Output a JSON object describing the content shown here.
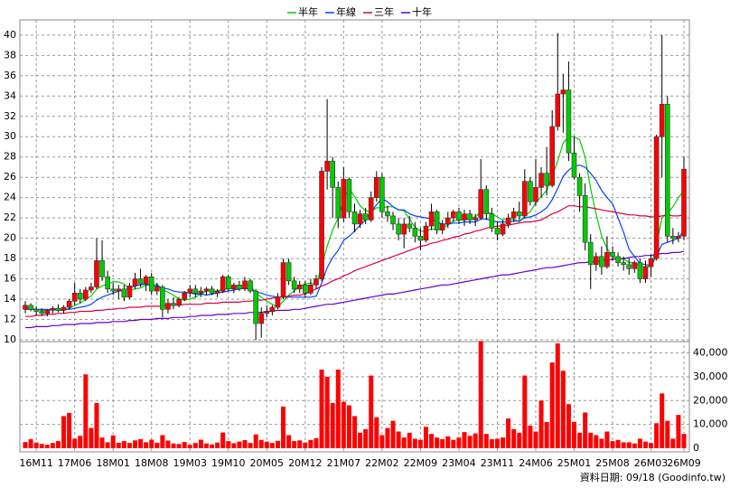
{
  "chart_data": {
    "type": "candlestick",
    "footer": "資料日期: 09/18 (Goodinfo.tw)",
    "grid": true,
    "legend": "top",
    "up_color": "#ff0000",
    "down_color": "#00cc00",
    "categories": [
      null,
      null,
      "16M11",
      null,
      null,
      null,
      null,
      null,
      null,
      "17M06",
      null,
      null,
      null,
      null,
      null,
      null,
      "18M01",
      null,
      null,
      null,
      null,
      null,
      null,
      "18M08",
      null,
      null,
      null,
      null,
      null,
      null,
      "19M03",
      null,
      null,
      null,
      null,
      null,
      null,
      "19M10",
      null,
      null,
      null,
      null,
      null,
      null,
      "20M05",
      null,
      null,
      null,
      null,
      null,
      null,
      "20M12",
      null,
      null,
      null,
      null,
      null,
      null,
      "21M07",
      null,
      null,
      null,
      null,
      null,
      null,
      "22M02",
      null,
      null,
      null,
      null,
      null,
      null,
      "22M09",
      null,
      null,
      null,
      null,
      null,
      null,
      "23M04",
      null,
      null,
      null,
      null,
      null,
      null,
      "23M11",
      null,
      null,
      null,
      null,
      null,
      null,
      "24M06",
      null,
      null,
      null,
      null,
      null,
      null,
      "25M01",
      null,
      null,
      null,
      null,
      null,
      null,
      "25M08",
      null,
      null,
      null,
      null,
      null,
      null,
      "26M03",
      null,
      null,
      null,
      null,
      null,
      "26M09"
    ],
    "open": [
      13,
      13.4,
      13.0,
      12.8,
      12.6,
      12.9,
      13.1,
      12.9,
      13.2,
      13.8,
      14.6,
      14.0,
      14.9,
      15.2,
      17.8,
      16.2,
      15.0,
      14.8,
      15.0,
      14.2,
      15.3,
      16.0,
      15.5,
      16.2,
      14.8,
      15.2,
      13.0,
      13.6,
      13.4,
      14.0,
      14.6,
      15.0,
      14.6,
      14.8,
      15.0,
      14.6,
      14.8,
      16.2,
      15.0,
      15.4,
      15.0,
      15.8,
      14.8,
      11.6,
      12.6,
      12.8,
      13.2,
      14.2,
      17.6,
      15.8,
      15.0,
      15.4,
      14.6,
      15.4,
      16.0,
      26.6,
      27.6,
      25.0,
      22.0,
      25.8,
      22.6,
      21.4,
      22.4,
      21.8,
      24.0,
      26.0,
      22.6,
      22.2,
      21.4,
      20.4,
      21.4,
      21.0,
      20.2,
      19.8,
      21.2,
      22.6,
      20.8,
      21.4,
      22.0,
      22.6,
      21.8,
      22.4,
      21.8,
      22.0,
      24.8,
      22.4,
      21.0,
      20.4,
      21.4,
      22.0,
      22.6,
      22.2,
      25.6,
      23.6,
      25.0,
      26.4,
      25.2,
      31.0,
      34.2,
      34.6,
      28.4,
      26.0,
      24.2,
      19.6,
      17.4,
      18.2,
      17.2,
      18.6,
      18.2,
      17.6,
      17.4,
      17.0,
      17.6,
      16.0,
      17.2,
      18.0,
      30.0,
      33.2,
      20.2,
      20.0,
      20.2
    ],
    "high": [
      13.8,
      13.6,
      13.3,
      13.1,
      13.0,
      13.3,
      13.5,
      13.4,
      14.0,
      15.6,
      15.0,
      15.2,
      15.6,
      20.0,
      19.8,
      16.8,
      15.6,
      15.4,
      15.4,
      15.6,
      16.6,
      17.0,
      16.4,
      16.6,
      15.6,
      15.4,
      14.0,
      14.2,
      14.2,
      14.8,
      15.4,
      15.4,
      15.2,
      15.2,
      15.3,
      15.0,
      16.4,
      16.4,
      15.6,
      15.8,
      16.2,
      16.0,
      15.0,
      13.2,
      13.4,
      13.4,
      14.6,
      18.0,
      18.0,
      16.2,
      15.8,
      15.8,
      16.0,
      16.4,
      27.0,
      33.7,
      28.0,
      25.6,
      27.0,
      26.0,
      23.4,
      22.8,
      23.0,
      24.6,
      26.6,
      26.4,
      23.2,
      22.6,
      22.0,
      22.0,
      22.2,
      21.6,
      21.0,
      21.6,
      23.4,
      22.8,
      21.8,
      22.6,
      22.8,
      23.0,
      22.8,
      22.8,
      22.4,
      27.8,
      25.2,
      23.0,
      21.6,
      21.8,
      22.4,
      23.0,
      23.6,
      26.8,
      26.0,
      27.8,
      27.0,
      29.0,
      32.6,
      40.2,
      36.2,
      37.4,
      30.0,
      26.4,
      25.4,
      20.4,
      18.6,
      19.2,
      20.2,
      19.2,
      18.6,
      18.2,
      18.0,
      17.8,
      18.0,
      17.8,
      18.4,
      30.2,
      40.0,
      34.0,
      21.0,
      20.6,
      28.0
    ],
    "low": [
      12.6,
      12.8,
      12.4,
      12.4,
      12.3,
      12.6,
      12.7,
      12.6,
      13.0,
      13.4,
      13.6,
      13.8,
      14.6,
      15.0,
      15.8,
      14.6,
      14.4,
      14.0,
      13.8,
      14.0,
      15.0,
      15.2,
      14.8,
      14.4,
      14.4,
      12.2,
      12.6,
      13.0,
      13.2,
      13.8,
      14.2,
      14.2,
      14.2,
      14.4,
      14.4,
      14.2,
      14.6,
      14.8,
      14.6,
      14.8,
      14.8,
      14.6,
      10.0,
      10.2,
      12.2,
      12.4,
      13.0,
      14.0,
      15.4,
      14.6,
      14.6,
      14.2,
      14.4,
      15.0,
      15.8,
      24.8,
      22.0,
      21.0,
      21.6,
      22.0,
      20.6,
      21.0,
      21.4,
      21.6,
      23.6,
      22.0,
      21.6,
      20.8,
      19.8,
      19.0,
      20.6,
      19.6,
      18.8,
      19.6,
      20.8,
      20.4,
      20.4,
      21.0,
      21.6,
      21.4,
      21.2,
      21.4,
      21.2,
      21.8,
      21.8,
      20.6,
      19.8,
      20.2,
      21.0,
      21.6,
      21.8,
      22.0,
      23.2,
      23.2,
      24.0,
      24.2,
      25.0,
      30.6,
      30.4,
      27.6,
      25.8,
      22.6,
      18.8,
      15.0,
      16.8,
      16.4,
      17.0,
      17.8,
      17.2,
      16.8,
      16.4,
      16.6,
      15.6,
      15.6,
      16.2,
      17.8,
      26.0,
      19.6,
      19.4,
      19.6,
      19.8
    ],
    "close": [
      13.4,
      13.0,
      12.8,
      12.6,
      12.9,
      13.1,
      12.9,
      13.2,
      13.8,
      14.6,
      14.0,
      14.9,
      15.2,
      17.8,
      16.2,
      15.0,
      14.8,
      15.0,
      14.2,
      15.3,
      16.0,
      15.5,
      16.2,
      14.8,
      15.2,
      13.0,
      13.6,
      13.4,
      14.0,
      14.6,
      15.0,
      14.6,
      14.8,
      15.0,
      14.6,
      14.8,
      16.2,
      15.0,
      15.4,
      15.0,
      15.8,
      14.8,
      11.6,
      12.6,
      12.8,
      13.2,
      14.2,
      17.6,
      15.8,
      15.0,
      15.4,
      14.6,
      15.4,
      16.0,
      26.6,
      27.6,
      25.0,
      22.0,
      25.8,
      22.6,
      21.4,
      22.4,
      21.8,
      24.0,
      26.0,
      22.6,
      22.2,
      21.4,
      20.4,
      21.4,
      21.0,
      20.2,
      19.8,
      21.2,
      22.6,
      20.8,
      21.4,
      22.0,
      22.6,
      21.8,
      22.4,
      21.8,
      22.0,
      24.8,
      22.4,
      21.0,
      20.4,
      21.4,
      22.0,
      22.6,
      22.2,
      25.6,
      23.6,
      25.0,
      26.4,
      25.2,
      31.0,
      34.2,
      34.6,
      28.4,
      26.0,
      24.2,
      19.6,
      17.4,
      18.2,
      17.2,
      18.6,
      18.2,
      17.6,
      17.4,
      17.0,
      17.6,
      16.0,
      17.2,
      18.0,
      30.0,
      33.2,
      20.2,
      20.0,
      20.2,
      26.8
    ],
    "volume": {
      "color": "#ff0000",
      "values": [
        2600,
        3800,
        2400,
        1800,
        1500,
        2200,
        3000,
        13500,
        14800,
        4000,
        5200,
        31000,
        8500,
        19000,
        4500,
        2500,
        5400,
        2300,
        3000,
        2200,
        3300,
        3800,
        2500,
        3600,
        2300,
        5500,
        3200,
        2000,
        1800,
        2600,
        1400,
        2200,
        3600,
        2000,
        1600,
        2400,
        6600,
        3000,
        2100,
        2800,
        3400,
        2200,
        5800,
        3500,
        2800,
        2200,
        3100,
        17500,
        5500,
        3000,
        3300,
        2400,
        3500,
        4200,
        33000,
        30000,
        19000,
        33000,
        19500,
        18000,
        13500,
        6500,
        8000,
        30500,
        13000,
        5500,
        8500,
        11500,
        7000,
        4500,
        6500,
        4000,
        3500,
        9000,
        6000,
        4500,
        3800,
        5000,
        3500,
        4500,
        6800,
        5200,
        6200,
        45000,
        6000,
        3800,
        4000,
        4500,
        12500,
        8000,
        6500,
        30500,
        9500,
        7000,
        20000,
        11000,
        36000,
        44000,
        32500,
        18500,
        11000,
        6500,
        15000,
        6500,
        5500,
        4000,
        7000,
        3000,
        3500,
        2500,
        2500,
        2000,
        4000,
        2800,
        2200,
        10500,
        23000,
        11500,
        4000,
        14000,
        6000
      ]
    },
    "series": [
      {
        "name": "半年",
        "color": "#00cc00",
        "values": [
          13.2,
          13.1,
          13.0,
          12.9,
          12.9,
          13.0,
          12.9,
          12.9,
          13.1,
          13.4,
          13.6,
          14.0,
          14.3,
          15.0,
          15.3,
          15.5,
          15.7,
          15.7,
          15.5,
          14.9,
          15.0,
          15.1,
          15.4,
          15.3,
          15.5,
          14.9,
          14.7,
          14.4,
          14.0,
          13.9,
          14.0,
          14.2,
          14.5,
          14.8,
          14.8,
          14.8,
          15.0,
          15.0,
          15.2,
          15.2,
          15.4,
          15.4,
          14.6,
          14.2,
          13.8,
          13.5,
          13.2,
          13.8,
          14.4,
          14.8,
          15.3,
          15.5,
          15.6,
          15.4,
          17.3,
          19.2,
          20.8,
          22.0,
          23.9,
          24.9,
          24.1,
          23.2,
          22.7,
          22.6,
          23.0,
          23.0,
          23.1,
          23.1,
          22.8,
          22.7,
          21.9,
          21.1,
          20.7,
          20.7,
          20.9,
          20.9,
          21.0,
          21.3,
          21.7,
          21.8,
          21.8,
          22.0,
          22.1,
          22.6,
          22.6,
          22.4,
          22.1,
          21.8,
          21.9,
          21.9,
          21.6,
          22.2,
          22.6,
          23.5,
          24.1,
          24.7,
          26.1,
          27.6,
          29.4,
          30.0,
          30.0,
          29.7,
          28.0,
          24.9,
          22.4,
          20.2,
          19.0,
          18.2,
          17.9,
          18.0,
          17.6,
          17.6,
          17.2,
          17.2,
          17.2,
          19.3,
          22.0,
          22.5,
          23.1,
          24.0,
          24.7
        ]
      },
      {
        "name": "年線",
        "color": "#0044ff",
        "values": [
          13.0,
          13.0,
          13.0,
          13.0,
          13.0,
          13.0,
          13.0,
          13.0,
          13.0,
          13.1,
          13.2,
          13.3,
          13.5,
          13.9,
          14.2,
          14.4,
          14.6,
          14.8,
          14.9,
          15.1,
          15.3,
          15.4,
          15.5,
          15.3,
          15.3,
          15.1,
          15.0,
          14.8,
          14.7,
          14.7,
          14.6,
          14.5,
          14.5,
          14.4,
          14.5,
          14.6,
          14.7,
          14.8,
          14.9,
          15.0,
          15.1,
          15.0,
          14.7,
          14.6,
          14.4,
          14.3,
          14.2,
          14.2,
          14.2,
          14.2,
          14.2,
          14.2,
          14.2,
          14.3,
          15.6,
          17.1,
          18.1,
          18.8,
          19.8,
          20.2,
          20.7,
          21.3,
          21.8,
          22.6,
          23.3,
          23.9,
          23.6,
          23.1,
          22.8,
          22.8,
          22.4,
          22.2,
          22.1,
          22.0,
          21.9,
          21.6,
          21.4,
          21.4,
          21.5,
          21.5,
          21.6,
          21.6,
          21.6,
          21.9,
          21.9,
          21.7,
          21.6,
          21.6,
          21.6,
          21.7,
          21.7,
          22.0,
          22.1,
          22.3,
          22.6,
          23.0,
          23.8,
          24.9,
          26.1,
          26.7,
          27.1,
          27.2,
          27.0,
          26.4,
          25.7,
          24.7,
          24.0,
          23.4,
          22.0,
          20.6,
          18.9,
          18.2,
          17.5,
          17.4,
          17.3,
          18.2,
          19.4,
          19.6,
          19.8,
          20.0,
          20.8
        ]
      },
      {
        "name": "三年",
        "color": "#dd0044",
        "values": [
          12.3,
          12.3,
          12.4,
          12.4,
          12.5,
          12.5,
          12.6,
          12.6,
          12.7,
          12.7,
          12.8,
          12.8,
          12.8,
          12.9,
          12.9,
          13.0,
          13.0,
          13.1,
          13.1,
          13.2,
          13.2,
          13.2,
          13.3,
          13.3,
          13.3,
          13.3,
          13.4,
          13.4,
          13.4,
          13.5,
          13.5,
          13.5,
          13.5,
          13.6,
          13.6,
          13.6,
          13.7,
          13.7,
          13.7,
          13.7,
          13.8,
          13.8,
          13.9,
          13.9,
          14.0,
          14.1,
          14.2,
          14.2,
          14.3,
          14.4,
          14.4,
          14.5,
          14.8,
          15.0,
          15.3,
          15.5,
          15.8,
          16.0,
          16.3,
          16.5,
          16.8,
          17.0,
          17.2,
          17.4,
          17.6,
          17.8,
          18.0,
          18.2,
          18.4,
          18.6,
          18.8,
          19.0,
          19.2,
          19.3,
          19.5,
          19.6,
          19.8,
          19.9,
          20.1,
          20.2,
          20.4,
          20.5,
          20.7,
          20.8,
          21.0,
          21.1,
          21.2,
          21.2,
          21.3,
          21.4,
          21.5,
          21.6,
          21.6,
          21.7,
          21.8,
          22.1,
          22.4,
          22.6,
          22.9,
          23.2,
          23.2,
          23.1,
          23.1,
          23.0,
          22.9,
          22.8,
          22.7,
          22.6,
          22.5,
          22.4,
          22.3,
          22.3,
          22.2,
          22.2,
          22.1,
          22.1,
          22.2,
          22.3,
          22.2,
          22.2,
          22.3
        ]
      },
      {
        "name": "十年",
        "color": "#6600cc",
        "values": [
          11.2,
          11.2,
          11.3,
          11.3,
          11.3,
          11.4,
          11.4,
          11.5,
          11.5,
          11.5,
          11.6,
          11.6,
          11.6,
          11.7,
          11.7,
          11.7,
          11.8,
          11.8,
          11.8,
          11.9,
          11.9,
          12.0,
          12.0,
          12.0,
          12.1,
          12.1,
          12.1,
          12.2,
          12.2,
          12.2,
          12.3,
          12.3,
          12.4,
          12.4,
          12.4,
          12.5,
          12.5,
          12.5,
          12.6,
          12.6,
          12.6,
          12.7,
          12.7,
          12.7,
          12.8,
          12.8,
          12.9,
          12.9,
          12.9,
          13.0,
          13.0,
          13.1,
          13.2,
          13.3,
          13.4,
          13.5,
          13.5,
          13.6,
          13.7,
          13.8,
          13.9,
          14.0,
          14.1,
          14.2,
          14.3,
          14.4,
          14.5,
          14.5,
          14.6,
          14.7,
          14.8,
          14.9,
          15.0,
          15.1,
          15.2,
          15.3,
          15.4,
          15.4,
          15.5,
          15.6,
          15.7,
          15.8,
          15.9,
          16.0,
          16.1,
          16.2,
          16.3,
          16.4,
          16.4,
          16.5,
          16.6,
          16.7,
          16.8,
          16.9,
          17.0,
          17.1,
          17.1,
          17.2,
          17.3,
          17.4,
          17.5,
          17.6,
          17.6,
          17.7,
          17.7,
          17.8,
          17.9,
          17.9,
          18.0,
          18.0,
          18.1,
          18.2,
          18.2,
          18.3,
          18.3,
          18.4,
          18.5,
          18.5,
          18.6,
          18.6,
          18.7
        ]
      }
    ],
    "ylim": [
      10,
      41.5
    ],
    "yticks": [
      10,
      12,
      14,
      16,
      18,
      20,
      22,
      24,
      26,
      28,
      30,
      32,
      34,
      36,
      38,
      40
    ],
    "y2lim": [
      0,
      44000
    ],
    "y2ticks": [
      0,
      {
        "value": 10000,
        "label": "10,000"
      },
      {
        "value": 20000,
        "label": "20,000"
      },
      {
        "value": 30000,
        "label": "30,000"
      },
      {
        "value": 40000,
        "label": "40,000"
      }
    ]
  }
}
